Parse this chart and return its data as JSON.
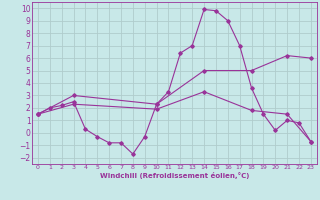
{
  "xlabel": "Windchill (Refroidissement éolien,°C)",
  "ylabel": "",
  "xlim": [
    -0.5,
    23.5
  ],
  "ylim": [
    -2.5,
    10.5
  ],
  "yticks": [
    -2,
    -1,
    0,
    1,
    2,
    3,
    4,
    5,
    6,
    7,
    8,
    9,
    10
  ],
  "xticks": [
    0,
    1,
    2,
    3,
    4,
    5,
    6,
    7,
    8,
    9,
    10,
    11,
    12,
    13,
    14,
    15,
    16,
    17,
    18,
    19,
    20,
    21,
    22,
    23
  ],
  "bg_color": "#c8e8e8",
  "grid_color": "#b0cccc",
  "line_color": "#993399",
  "line1_x": [
    0,
    1,
    2,
    3,
    4,
    5,
    6,
    7,
    8,
    9,
    10,
    11,
    12,
    13,
    14,
    15,
    16,
    17,
    18,
    19,
    20,
    21,
    22,
    23
  ],
  "line1_y": [
    1.5,
    2.0,
    2.2,
    2.5,
    0.3,
    -0.3,
    -0.8,
    -0.8,
    -1.7,
    -0.3,
    2.3,
    3.3,
    6.4,
    7.0,
    9.9,
    9.8,
    9.0,
    7.0,
    3.6,
    1.5,
    0.2,
    1.0,
    0.8,
    -0.7
  ],
  "line2_x": [
    0,
    3,
    10,
    14,
    18,
    21,
    23
  ],
  "line2_y": [
    1.5,
    3.0,
    2.3,
    5.0,
    5.0,
    6.2,
    6.0
  ],
  "line3_x": [
    0,
    3,
    10,
    14,
    18,
    21,
    23
  ],
  "line3_y": [
    1.5,
    2.3,
    1.9,
    3.3,
    1.8,
    1.5,
    -0.7
  ]
}
